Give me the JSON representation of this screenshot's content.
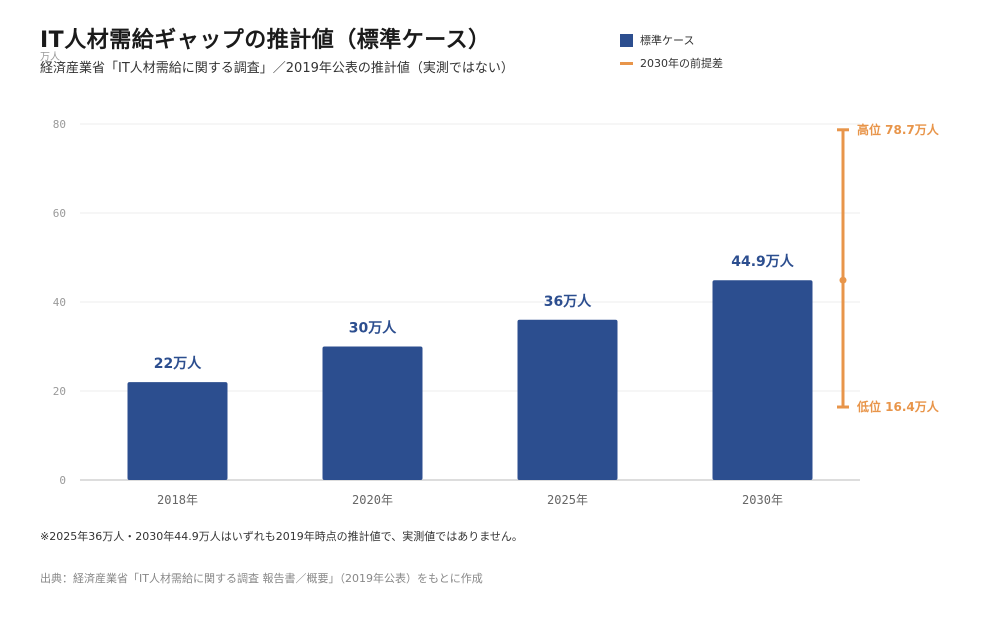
{
  "chart_data": {
    "type": "bar",
    "title": "IT人材需給ギャップの推計値（標準ケース）",
    "subtitle": "経済産業省「IT人材需給に関する調査」／2019年公表の推計値（実測ではない）",
    "ylabel": "万人",
    "ylim": [
      0,
      80
    ],
    "yticks": [
      0,
      20,
      40,
      60,
      80
    ],
    "grid": true,
    "legend_position": "top-right",
    "categories": [
      "2018年",
      "2020年",
      "2025年",
      "2030年"
    ],
    "series": [
      {
        "name": "標準ケース",
        "values": [
          22,
          30,
          36,
          44.9
        ],
        "labels": [
          "22万人",
          "30万人",
          "36万人",
          "44.9万人"
        ],
        "color": "#2c4e8f"
      }
    ],
    "range_2030": {
      "name": "2030年の前提差",
      "high": 78.7,
      "low": 16.4,
      "high_label": "高位  78.7万人",
      "low_label": "低位  16.4万人",
      "color": "#e8954a"
    }
  },
  "note": "※2025年36万人・2030年44.9万人はいずれも2019年時点の推計値で、実測値ではありません。",
  "source": "出典：経済産業省「IT人材需給に関する調査 報告書／概要」（2019年公表）をもとに作成"
}
